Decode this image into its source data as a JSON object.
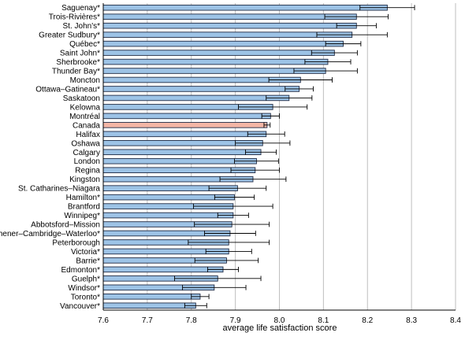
{
  "chart_data": {
    "type": "bar",
    "orientation": "horizontal",
    "xlabel": "average life satisfaction score",
    "xlim": [
      7.6,
      8.4
    ],
    "xticks": [
      "7.6",
      "7.7",
      "7.8",
      "7.9",
      "8.0",
      "8.1",
      "8.2",
      "8.3",
      "8.4"
    ],
    "grid": "vertical",
    "bar_color": "#9dc3e6",
    "highlight_color": "#f4b6a6",
    "highlight_category": "Canada",
    "categories": [
      "Saguenay*",
      "Trois-Rivières*",
      "St. John's*",
      "Greater Sudbury*",
      "Québec*",
      "Saint John*",
      "Sherbrooke*",
      "Thunder Bay*",
      "Moncton",
      "Ottawa–Gatineau*",
      "Saskatoon",
      "Kelowna",
      "Montréal",
      "Canada",
      "Halifax",
      "Oshawa",
      "Calgary",
      "London",
      "Regina",
      "Kingston",
      "St. Catharines–Niagara",
      "Hamilton*",
      "Brantford",
      "Winnipeg*",
      "Abbotsford–Mission",
      "Kitchener–Cambridge–Waterloo*",
      "Peterborough",
      "Victoria*",
      "Barrie*",
      "Edmonton*",
      "Guelph*",
      "Windsor*",
      "Toronto*",
      "Vancouver*"
    ],
    "values": [
      8.245,
      8.175,
      8.175,
      8.165,
      8.145,
      8.125,
      8.11,
      8.105,
      8.048,
      8.045,
      8.022,
      7.985,
      7.98,
      7.972,
      7.97,
      7.962,
      7.958,
      7.948,
      7.945,
      7.94,
      7.905,
      7.898,
      7.895,
      7.895,
      7.892,
      7.888,
      7.885,
      7.885,
      7.88,
      7.872,
      7.86,
      7.852,
      7.82,
      7.81
    ],
    "errors": [
      0.062,
      0.072,
      0.045,
      0.08,
      0.04,
      0.052,
      0.052,
      0.072,
      0.072,
      0.032,
      0.052,
      0.078,
      0.02,
      0.007,
      0.042,
      0.062,
      0.035,
      0.05,
      0.055,
      0.075,
      0.065,
      0.045,
      0.09,
      0.035,
      0.085,
      0.058,
      0.092,
      0.052,
      0.072,
      0.035,
      0.098,
      0.072,
      0.02,
      0.025
    ]
  }
}
